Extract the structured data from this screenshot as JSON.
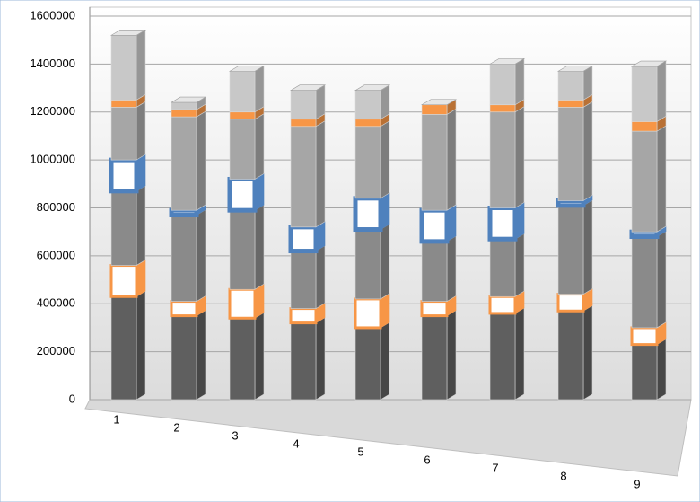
{
  "chart_data": {
    "type": "bar3d",
    "stacked": true,
    "categories": [
      "1",
      "2",
      "3",
      "4",
      "5",
      "6",
      "7",
      "8",
      "9"
    ],
    "ylim": [
      0,
      1600000
    ],
    "yticks": [
      0,
      200000,
      400000,
      600000,
      800000,
      1000000,
      1200000,
      1400000,
      1600000
    ],
    "grid": true,
    "series": [
      {
        "color": "#5f5f5f",
        "values": [
          430000,
          350000,
          340000,
          320000,
          300000,
          350000,
          360000,
          370000,
          230000
        ]
      },
      {
        "color": "#f79646",
        "fill": "#ffffff",
        "values": [
          130000,
          60000,
          120000,
          60000,
          120000,
          60000,
          70000,
          70000,
          70000
        ]
      },
      {
        "color": "#8a8a8a",
        "values": [
          310000,
          360000,
          330000,
          240000,
          290000,
          250000,
          240000,
          370000,
          380000
        ]
      },
      {
        "color": "#4f81bd",
        "fill": "#ffffff",
        "values": [
          130000,
          20000,
          130000,
          100000,
          130000,
          130000,
          130000,
          20000,
          20000
        ]
      },
      {
        "color": "#a6a6a6",
        "values": [
          220000,
          390000,
          250000,
          420000,
          300000,
          400000,
          400000,
          390000,
          420000
        ]
      },
      {
        "color": "#f79646",
        "values": [
          30000,
          30000,
          30000,
          30000,
          30000,
          40000,
          30000,
          30000,
          40000
        ]
      },
      {
        "color": "#c8c8c8",
        "values": [
          270000,
          30000,
          170000,
          120000,
          120000,
          0,
          170000,
          120000,
          230000
        ]
      }
    ]
  }
}
